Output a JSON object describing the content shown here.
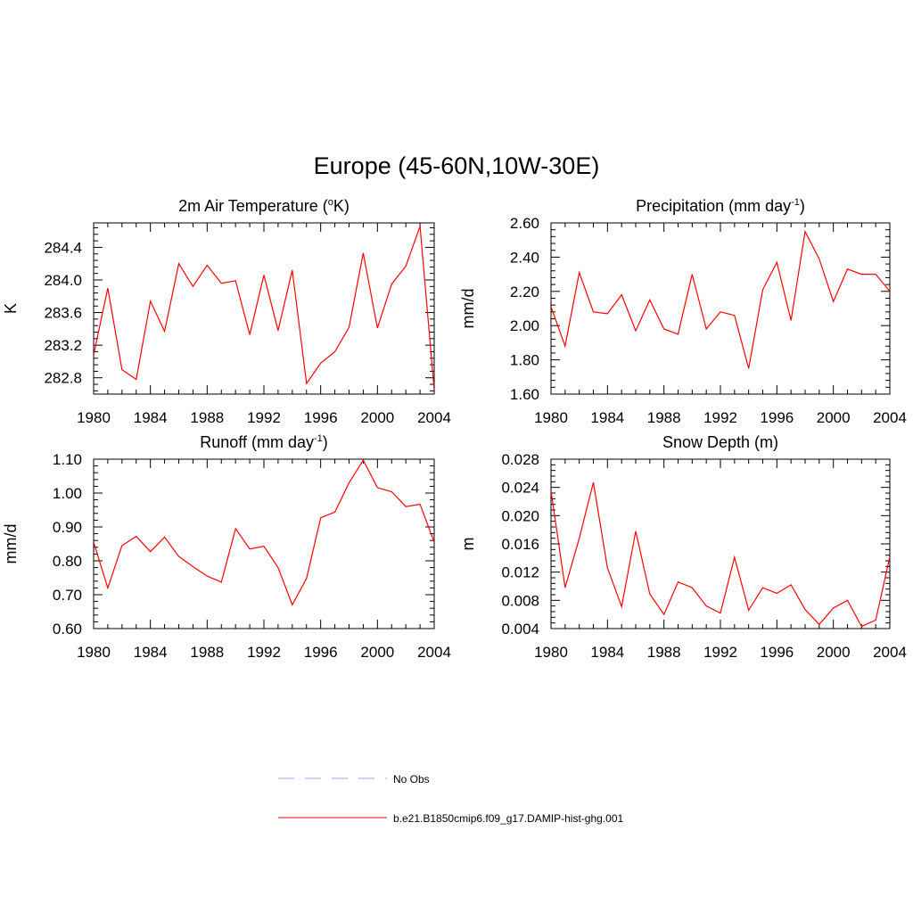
{
  "figure": {
    "title": "Europe (45-60N,10W-30E)"
  },
  "legend": [
    {
      "label": "No Obs",
      "color": "#9999ff",
      "dashed": true
    },
    {
      "label": "b.e21.B1850cmip6.f09_g17.DAMIP-hist-ghg.001",
      "color": "#ff0000",
      "dashed": false
    }
  ],
  "chart_data": [
    {
      "type": "line",
      "title": "2m Air Temperature (°K)",
      "title_parts": [
        "2m Air Temperature (",
        "o",
        "K)"
      ],
      "xlabel": "",
      "ylabel": "K",
      "xlim": [
        1980,
        2004
      ],
      "ylim": [
        282.6,
        284.7
      ],
      "xticks": [
        1980,
        1984,
        1988,
        1992,
        1996,
        2000,
        2004
      ],
      "yticks": [
        282.8,
        283.2,
        283.6,
        284.0,
        284.4
      ],
      "ytick_labels": [
        "282.8",
        "283.2",
        "283.6",
        "284.0",
        "284.4"
      ],
      "series": [
        {
          "color": "#ff0000",
          "x": [
            1980,
            1981,
            1982,
            1983,
            1984,
            1985,
            1986,
            1987,
            1988,
            1989,
            1990,
            1991,
            1992,
            1993,
            1994,
            1995,
            1996,
            1997,
            1998,
            1999,
            2000,
            2001,
            2002,
            2003,
            2004
          ],
          "values": [
            283.08,
            283.9,
            282.9,
            282.78,
            283.74,
            283.37,
            284.2,
            283.92,
            284.18,
            283.96,
            283.99,
            283.33,
            284.06,
            283.38,
            284.12,
            282.73,
            282.98,
            283.12,
            283.42,
            284.33,
            283.41,
            283.95,
            284.17,
            284.66,
            282.65
          ]
        }
      ]
    },
    {
      "type": "line",
      "title": "Precipitation (mm day-1)",
      "title_parts": [
        "Precipitation (mm day",
        "-1",
        ")"
      ],
      "xlabel": "",
      "ylabel": "mm/d",
      "xlim": [
        1980,
        2004
      ],
      "ylim": [
        1.6,
        2.6
      ],
      "xticks": [
        1980,
        1984,
        1988,
        1992,
        1996,
        2000,
        2004
      ],
      "yticks": [
        1.6,
        1.8,
        2.0,
        2.2,
        2.4,
        2.6
      ],
      "ytick_labels": [
        "1.60",
        "1.80",
        "2.00",
        "2.20",
        "2.40",
        "2.60"
      ],
      "series": [
        {
          "color": "#ff0000",
          "x": [
            1980,
            1981,
            1982,
            1983,
            1984,
            1985,
            1986,
            1987,
            1988,
            1989,
            1990,
            1991,
            1992,
            1993,
            1994,
            1995,
            1996,
            1997,
            1998,
            1999,
            2000,
            2001,
            2002,
            2003,
            2004
          ],
          "values": [
            2.11,
            1.88,
            2.31,
            2.08,
            2.07,
            2.18,
            1.97,
            2.15,
            1.98,
            1.95,
            2.3,
            1.98,
            2.08,
            2.06,
            1.75,
            2.21,
            2.37,
            2.03,
            2.55,
            2.39,
            2.14,
            2.33,
            2.3,
            2.3,
            2.2
          ]
        }
      ]
    },
    {
      "type": "line",
      "title": "Runoff (mm day-1)",
      "title_parts": [
        "Runoff (mm day",
        "-1",
        ")"
      ],
      "xlabel": "",
      "ylabel": "mm/d",
      "xlim": [
        1980,
        2004
      ],
      "ylim": [
        0.6,
        1.1
      ],
      "xticks": [
        1980,
        1984,
        1988,
        1992,
        1996,
        2000,
        2004
      ],
      "yticks": [
        0.6,
        0.7,
        0.8,
        0.9,
        1.0,
        1.1
      ],
      "ytick_labels": [
        "0.60",
        "0.70",
        "0.80",
        "0.90",
        "1.00",
        "1.10"
      ],
      "series": [
        {
          "color": "#ff0000",
          "x": [
            1980,
            1981,
            1982,
            1983,
            1984,
            1985,
            1986,
            1987,
            1988,
            1989,
            1990,
            1991,
            1992,
            1993,
            1994,
            1995,
            1996,
            1997,
            1998,
            1999,
            2000,
            2001,
            2002,
            2003,
            2004
          ],
          "values": [
            0.855,
            0.72,
            0.845,
            0.872,
            0.827,
            0.87,
            0.813,
            0.783,
            0.755,
            0.737,
            0.895,
            0.835,
            0.843,
            0.78,
            0.67,
            0.748,
            0.927,
            0.944,
            1.03,
            1.097,
            1.016,
            1.004,
            0.96,
            0.967,
            0.855
          ]
        }
      ]
    },
    {
      "type": "line",
      "title": "Snow Depth (m)",
      "title_parts": [
        "Snow Depth (m)"
      ],
      "xlabel": "",
      "ylabel": "m",
      "xlim": [
        1980,
        2004
      ],
      "ylim": [
        0.004,
        0.028
      ],
      "xticks": [
        1980,
        1984,
        1988,
        1992,
        1996,
        2000,
        2004
      ],
      "yticks": [
        0.004,
        0.008,
        0.012,
        0.016,
        0.02,
        0.024,
        0.028
      ],
      "ytick_labels": [
        "0.004",
        "0.008",
        "0.012",
        "0.016",
        "0.020",
        "0.024",
        "0.028"
      ],
      "series": [
        {
          "color": "#ff0000",
          "x": [
            1980,
            1981,
            1982,
            1983,
            1984,
            1985,
            1986,
            1987,
            1988,
            1989,
            1990,
            1991,
            1992,
            1993,
            1994,
            1995,
            1996,
            1997,
            1998,
            1999,
            2000,
            2001,
            2002,
            2003,
            2004
          ],
          "values": [
            0.0235,
            0.0098,
            0.0168,
            0.0247,
            0.0126,
            0.0071,
            0.0178,
            0.0089,
            0.006,
            0.0106,
            0.0098,
            0.0072,
            0.0062,
            0.0141,
            0.0066,
            0.0098,
            0.009,
            0.0102,
            0.0067,
            0.0046,
            0.0069,
            0.008,
            0.0043,
            0.0052,
            0.0142
          ]
        }
      ]
    }
  ]
}
